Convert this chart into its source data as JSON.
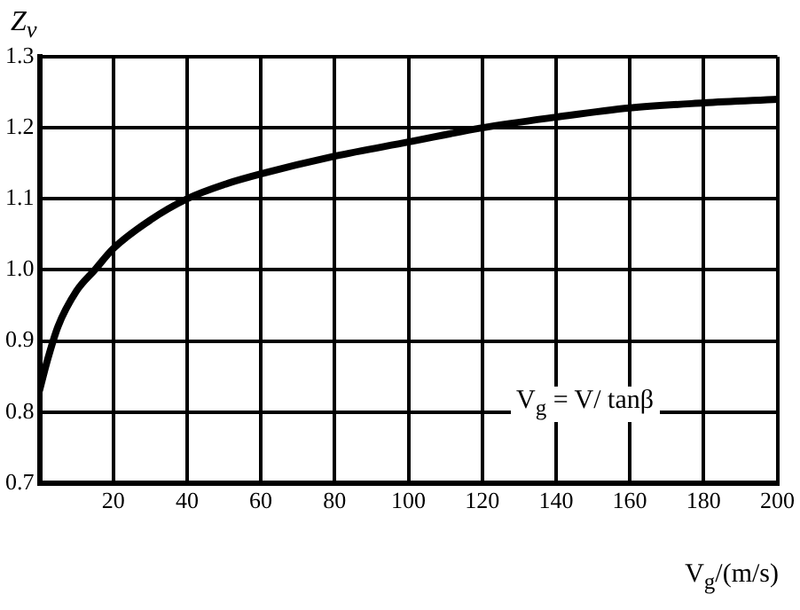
{
  "chart_data": {
    "type": "line",
    "ylabel": "Z$_{v}$",
    "xlabel": "V$_{g}$/(m/s)",
    "annotations": [
      {
        "text": "V$_{g}$ = V/ tanβ"
      }
    ],
    "x": [
      0,
      2,
      5,
      10,
      15,
      20,
      30,
      40,
      50,
      60,
      80,
      100,
      120,
      140,
      160,
      180,
      200
    ],
    "series": [
      {
        "color": "#000000",
        "values": [
          0.83,
          0.87,
          0.92,
          0.97,
          1.0,
          1.03,
          1.07,
          1.1,
          1.12,
          1.135,
          1.16,
          1.18,
          1.2,
          1.215,
          1.228,
          1.235,
          1.24
        ]
      }
    ],
    "xlim": [
      0,
      200
    ],
    "xticks": [
      20,
      40,
      60,
      80,
      100,
      120,
      140,
      160,
      180,
      200
    ],
    "ylim": [
      0.7,
      1.3
    ],
    "yticks": [
      0.7,
      0.8,
      0.9,
      {
        "value": 1,
        "label": "1.0"
      },
      1.1,
      1.2,
      1.3
    ],
    "grid": true,
    "legend": false,
    "marker": "none",
    "line_style": "solid"
  }
}
